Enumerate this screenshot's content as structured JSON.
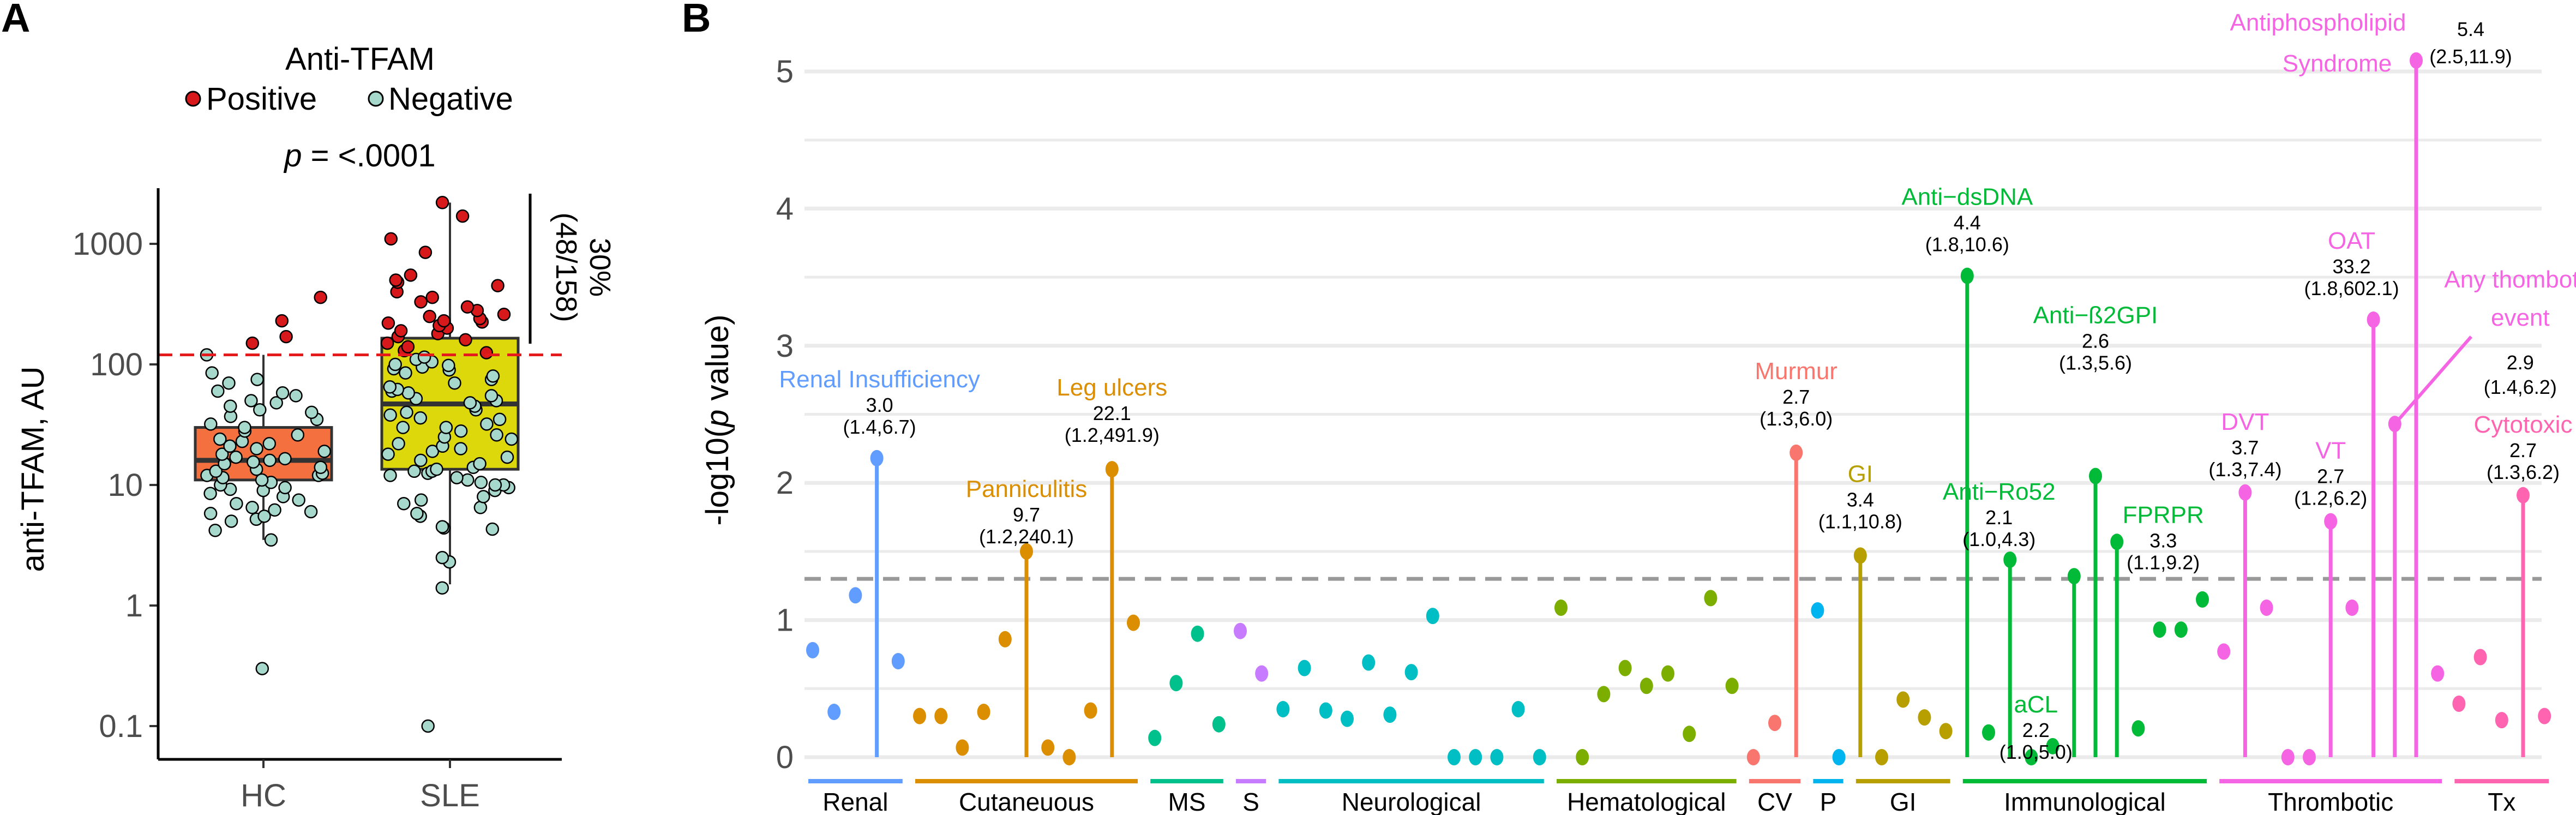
{
  "figure": {
    "panel_a_letter": "A",
    "panel_b_letter": "B"
  },
  "chart_data": [
    {
      "type": "box",
      "panel": "A",
      "legend_title": "Anti-TFAM",
      "legend": [
        {
          "label": "Positive",
          "color": "#d7191c"
        },
        {
          "label": "Negative",
          "color": "#a6d8cc"
        }
      ],
      "pvalue_label": "p",
      "pvalue_text": " = <.0001",
      "ylabel": "anti-TFAM, AU",
      "yscale": "log10",
      "ylim": [
        0.055,
        3500
      ],
      "yticks": [
        0.1,
        1,
        10,
        100,
        1000
      ],
      "ytick_labels": [
        "0.1",
        "1",
        "10",
        "100",
        "1000"
      ],
      "categories": [
        "HC",
        "SLE"
      ],
      "cutoff": 120,
      "cutoff_color": "#e41a1c",
      "positive_annotation": {
        "line1": "30%",
        "line2": "(48/158)"
      },
      "boxes": [
        {
          "group": "HC",
          "q1": 11,
          "median": 16,
          "q3": 30,
          "whisker_low": 3.5,
          "whisker_high": 120,
          "fill": "#f4713f"
        },
        {
          "group": "SLE",
          "q1": 13.5,
          "median": 47,
          "q3": 165,
          "whisker_low": 1.5,
          "whisker_high": 2200,
          "fill": "#ddd80c"
        }
      ],
      "points": {
        "HC": [
          0.3,
          3.5,
          4.2,
          5.0,
          5.2,
          5.5,
          5.8,
          6.0,
          6.2,
          6.5,
          7.0,
          7.5,
          8.0,
          8.5,
          9.0,
          9.2,
          9.5,
          10,
          10.5,
          11,
          11.5,
          12,
          12,
          12.5,
          13,
          13.5,
          14,
          15,
          15.5,
          16,
          16.5,
          17,
          18,
          19,
          20,
          21,
          22,
          23,
          24,
          26,
          28,
          30,
          32,
          35,
          37,
          40,
          42,
          45,
          48,
          50,
          55,
          58,
          60,
          70,
          75,
          85,
          120,
          150,
          170,
          230,
          360
        ],
        "SLE": [
          0.1,
          1.4,
          2.3,
          2.5,
          4.3,
          4.4,
          4.5,
          5.5,
          5.8,
          6.5,
          7.0,
          7.5,
          8.0,
          9.0,
          9.5,
          10,
          10,
          10.5,
          11,
          11.5,
          12,
          12.5,
          13,
          13,
          13.5,
          14,
          15,
          16,
          17,
          18,
          19,
          20,
          21,
          22,
          24,
          25,
          26,
          28,
          30,
          30,
          32,
          35,
          36,
          38,
          40,
          42,
          45,
          48,
          50,
          52,
          55,
          58,
          60,
          62,
          65,
          70,
          75,
          80,
          85,
          90,
          92,
          95,
          98,
          100,
          105,
          110,
          115,
          125,
          130,
          140,
          150,
          160,
          170,
          180,
          190,
          200,
          210,
          220,
          225,
          230,
          240,
          250,
          260,
          280,
          300,
          330,
          360,
          400,
          450,
          480,
          500,
          550,
          850,
          1100,
          1700,
          2200
        ]
      }
    },
    {
      "type": "lollipop",
      "panel": "B",
      "ylabel_prefix": "-log10(",
      "ylabel_italic": "p",
      "ylabel_suffix": " value)",
      "ylim": [
        -0.15,
        5.4
      ],
      "yticks": [
        0,
        1,
        2,
        3,
        4,
        5
      ],
      "minor_gridlines": [
        0.5,
        1.5,
        2.5,
        3.5,
        4.5
      ],
      "threshold": 1.3,
      "threshold_color": "#999999",
      "groups": [
        {
          "name": "Renal",
          "color": "#619CFF",
          "values": [
            0.78,
            0.33,
            1.18,
            2.18,
            0.7
          ]
        },
        {
          "name": "Cutaneuous",
          "color": "#DB8E00",
          "values": [
            0.3,
            0.3,
            0.07,
            0.33,
            0.86,
            1.5,
            0.07,
            0.0,
            0.34,
            2.1,
            0.98
          ]
        },
        {
          "name": "MS",
          "color": "#00C08B",
          "values": [
            0.14,
            0.54,
            0.9,
            0.24
          ]
        },
        {
          "name": "S",
          "color": "#C77CFF",
          "values": [
            0.92,
            0.61
          ]
        },
        {
          "name": "Neurological",
          "color": "#00BFC4",
          "values": [
            0.35,
            0.65,
            0.34,
            0.28,
            0.69,
            0.31,
            0.62,
            1.03,
            0.0,
            0.0,
            0.0,
            0.35,
            0.0
          ]
        },
        {
          "name": "Hematological",
          "color": "#7CAE00",
          "values": [
            1.09,
            0.0,
            0.46,
            0.65,
            0.52,
            0.61,
            0.17,
            1.16,
            0.52
          ]
        },
        {
          "name": "CV",
          "color": "#F8766D",
          "values": [
            0.0,
            0.25,
            2.22
          ]
        },
        {
          "name": "P",
          "color": "#00B4F0",
          "values": [
            1.07,
            0.0
          ]
        },
        {
          "name": "GI",
          "color": "#B79F00",
          "values": [
            1.47,
            0.0,
            0.42,
            0.29,
            0.19
          ]
        },
        {
          "name": "Immunological",
          "color": "#00BA38",
          "values": [
            3.51,
            0.18,
            1.44,
            0.0,
            0.08,
            1.32,
            2.05,
            1.57,
            0.21,
            0.93,
            0.93,
            1.15
          ]
        },
        {
          "name": "Thrombotic",
          "color": "#F564E3",
          "values": [
            0.77,
            1.93,
            1.09,
            0.0,
            0.0,
            1.72,
            1.09,
            3.19,
            2.43,
            5.08,
            0.61
          ]
        },
        {
          "name": "Tx",
          "color": "#FF64B0",
          "values": [
            0.39,
            0.73,
            0.27,
            1.91,
            0.3
          ]
        }
      ],
      "stems": [
        {
          "group": 0,
          "index": 3,
          "name": "Renal Insufficiency",
          "or": "3.0",
          "ci": "(1.4,6.7)"
        },
        {
          "group": 1,
          "index": 5,
          "name": "Panniculitis",
          "or": "9.7",
          "ci": "(1.2,240.1)"
        },
        {
          "group": 1,
          "index": 9,
          "name": "Leg ulcers",
          "or": "22.1",
          "ci": "(1.2,491.9)"
        },
        {
          "group": 6,
          "index": 2,
          "name": "Murmur",
          "or": "2.7",
          "ci": "(1.3,6.0)"
        },
        {
          "group": 8,
          "index": 0,
          "name": "GI",
          "or": "3.4",
          "ci": "(1.1,10.8)"
        },
        {
          "group": 9,
          "index": 0,
          "name": "Anti−dsDNA",
          "or": "4.4",
          "ci": "(1.8,10.6)"
        },
        {
          "group": 9,
          "index": 2,
          "name": "Anti−Ro52",
          "or": "2.1",
          "ci": "(1.0,4.3)"
        },
        {
          "group": 9,
          "index": 5,
          "name": "aCL",
          "or": "2.2",
          "ci": "(1.0,5.0)"
        },
        {
          "group": 9,
          "index": 6,
          "name": "Anti−ß2GPI",
          "or": "2.6",
          "ci": "(1.3,5.6)"
        },
        {
          "group": 9,
          "index": 7,
          "name": "FPRPR",
          "or": "3.3",
          "ci": "(1.1,9.2)"
        },
        {
          "group": 10,
          "index": 1,
          "name": "DVT",
          "or": "3.7",
          "ci": "(1.3,7.4)"
        },
        {
          "group": 10,
          "index": 5,
          "name": "VT",
          "or": "2.7",
          "ci": "(1.2,6.2)"
        },
        {
          "group": 10,
          "index": 7,
          "name": "OAT",
          "or": "33.2",
          "ci": "(1.8,602.1)"
        },
        {
          "group": 10,
          "index": 8,
          "name": "Any thombotic event",
          "or": "2.9",
          "ci": "(1.4,6.2)"
        },
        {
          "group": 10,
          "index": 9,
          "name": "Antiphospholipid Syndrome",
          "or": "5.4",
          "ci": "(2.5,11.9)"
        },
        {
          "group": 11,
          "index": 3,
          "name": "Cytotoxic",
          "or": "2.7",
          "ci": "(1.3,6.2)"
        }
      ]
    }
  ]
}
